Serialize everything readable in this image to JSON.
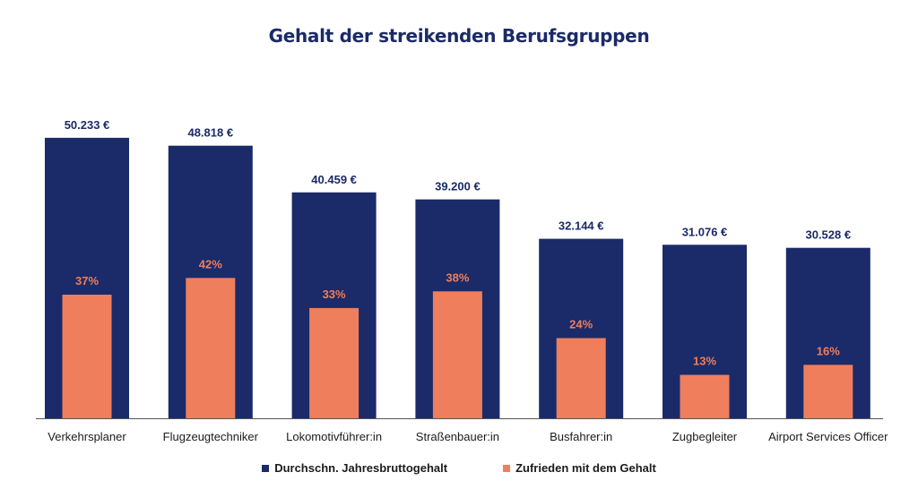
{
  "colors": {
    "salary_bar": "#1b2a68",
    "satisfaction_bar": "#ef7e5c",
    "title": "#1b2a68",
    "salary_label": "#1b2a68",
    "satisfaction_label": "#ef7e5c",
    "axis": "#555555"
  },
  "chart_data": {
    "type": "bar",
    "title": "Gehalt der streikenden Berufsgruppen",
    "categories": [
      "Verkehrsplaner",
      "Flugzeugtechniker",
      "Lokomotivführer:in",
      "Straßenbauer:in",
      "Busfahrer:in",
      "Zugbegleiter",
      "Airport Services Officer"
    ],
    "series": [
      {
        "name": "Durchschn. Jahresbruttogehalt",
        "values": [
          50233,
          48818,
          40459,
          39200,
          32144,
          31076,
          30528
        ],
        "labels": [
          "50.233 €",
          "48.818 €",
          "40.459 €",
          "39.200 €",
          "32.144 €",
          "31.076 €",
          "30.528 €"
        ]
      },
      {
        "name": "Zufrieden mit dem Gehalt",
        "values": [
          37,
          42,
          33,
          38,
          24,
          13,
          16
        ],
        "labels": [
          "37%",
          "42%",
          "33%",
          "38%",
          "24%",
          "13%",
          "16%"
        ]
      }
    ],
    "legend": "bottom",
    "grid": false
  }
}
